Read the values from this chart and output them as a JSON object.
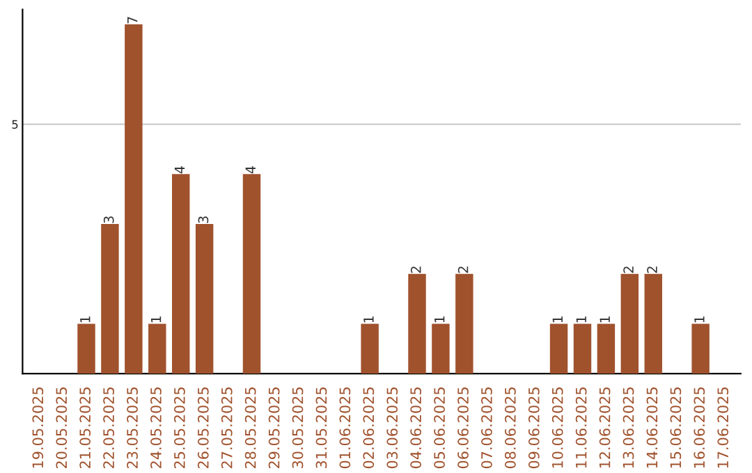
{
  "chart_data": {
    "type": "bar",
    "categories": [
      "19.05.2025",
      "20.05.2025",
      "21.05.2025",
      "22.05.2025",
      "23.05.2025",
      "24.05.2025",
      "25.05.2025",
      "26.05.2025",
      "27.05.2025",
      "28.05.2025",
      "29.05.2025",
      "30.05.2025",
      "31.05.2025",
      "01.06.2025",
      "02.06.2025",
      "03.06.2025",
      "04.06.2025",
      "05.06.2025",
      "06.06.2025",
      "07.06.2025",
      "08.06.2025",
      "09.06.2025",
      "10.06.2025",
      "11.06.2025",
      "12.06.2025",
      "13.06.2025",
      "14.06.2025",
      "15.06.2025",
      "16.06.2025",
      "17.06.2025"
    ],
    "values": [
      0,
      0,
      1,
      3,
      7,
      1,
      4,
      3,
      0,
      4,
      0,
      0,
      0,
      0,
      1,
      0,
      2,
      1,
      2,
      0,
      0,
      0,
      1,
      1,
      1,
      2,
      2,
      0,
      1,
      0
    ],
    "value_labels": [
      null,
      null,
      "1",
      "3",
      "7",
      "1",
      "4",
      "3",
      null,
      "4",
      null,
      null,
      null,
      null,
      "1",
      null,
      "2",
      "1",
      "2",
      null,
      null,
      null,
      "1",
      "1",
      "1",
      "2",
      "2",
      null,
      "1",
      null
    ],
    "color": "#a0522d",
    "ylim": [
      0,
      7.3
    ],
    "yticks": [
      5
    ],
    "grid": "y"
  }
}
